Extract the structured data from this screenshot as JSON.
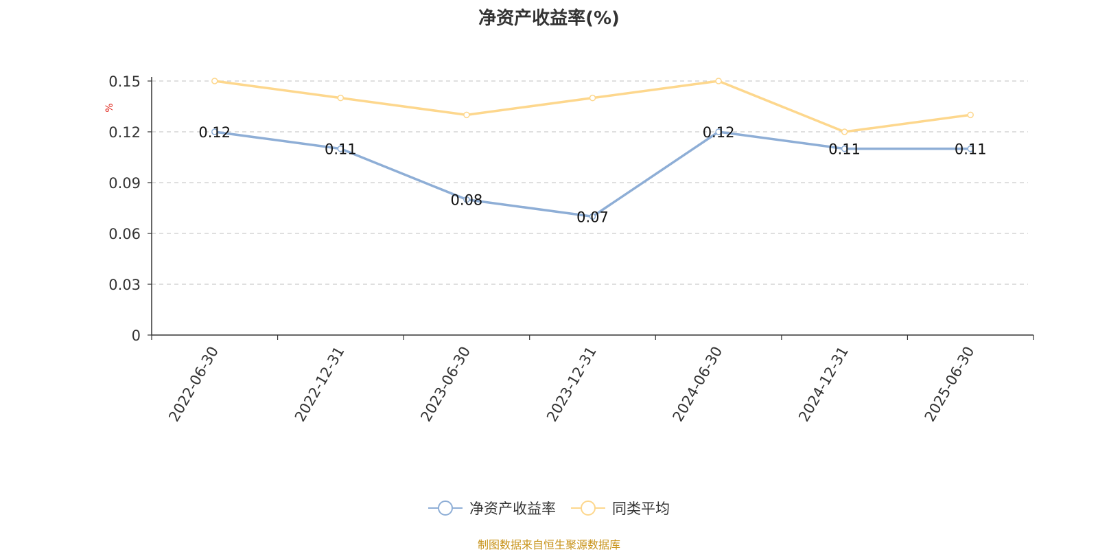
{
  "chart_data": {
    "type": "line",
    "title": "净资产收益率(%)",
    "ylabel": "%",
    "xlabel": "",
    "categories": [
      "2022-06-30",
      "2022-12-31",
      "2023-06-30",
      "2023-12-31",
      "2024-06-30",
      "2024-12-31",
      "2025-06-30"
    ],
    "ylim": [
      0,
      0.15
    ],
    "yticks": [
      "0",
      "0.03",
      "0.06",
      "0.09",
      "0.12",
      "0.15"
    ],
    "grid": true,
    "legend_position": "bottom",
    "series": [
      {
        "name": "净资产收益率",
        "color": "#8eaed6",
        "values": [
          0.12,
          0.11,
          0.08,
          0.07,
          0.12,
          0.11,
          0.11
        ],
        "labels": [
          "0.12",
          "0.11",
          "0.08",
          "0.07",
          "0.12",
          "0.11",
          "0.11"
        ]
      },
      {
        "name": "同类平均",
        "color": "#fdd78d",
        "values": [
          0.15,
          0.14,
          0.13,
          0.14,
          0.15,
          0.12,
          0.13
        ]
      }
    ]
  },
  "source_note": "制图数据来自恒生聚源数据库"
}
